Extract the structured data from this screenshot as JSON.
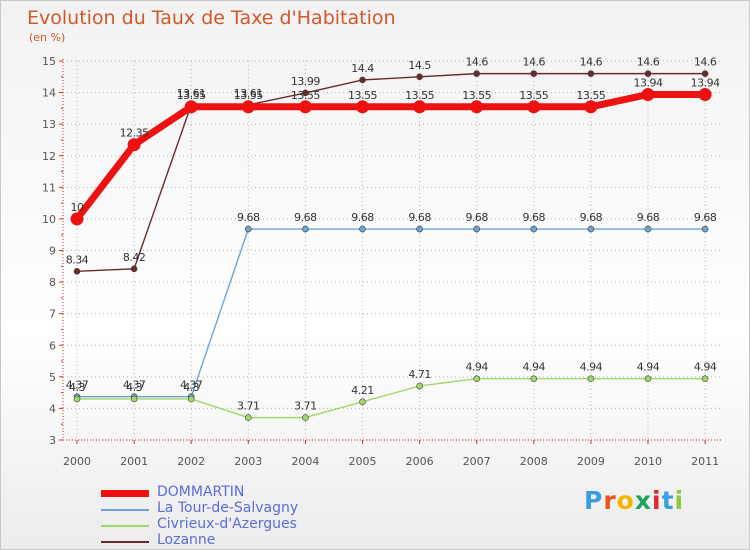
{
  "title": "Evolution du Taux de Taxe d'Habitation",
  "subtitle": "(en %)",
  "logo": {
    "letters": [
      "P",
      "r",
      "o",
      "x",
      "i",
      "t",
      "i"
    ],
    "colors": [
      "#3a9ee0",
      "#e8541b",
      "#f4b400",
      "#1fa45b",
      "#e3262e",
      "#3a9ee0",
      "#8ec63f"
    ]
  },
  "chart_data": {
    "type": "line",
    "title": "Evolution du Taux de Taxe d'Habitation",
    "ylabel": "(en %)",
    "xlabel": "",
    "x": [
      "2000",
      "2001",
      "2002",
      "2003",
      "2004",
      "2005",
      "2006",
      "2007",
      "2008",
      "2009",
      "2010",
      "2011"
    ],
    "ylim": [
      3,
      15
    ],
    "yticks": [
      "3",
      "4",
      "5",
      "6",
      "7",
      "8",
      "9",
      "10",
      "11",
      "12",
      "13",
      "14",
      "15"
    ],
    "legend_position": "bottom-left",
    "series": [
      {
        "name": "DOMMARTIN",
        "color": "#ee1111",
        "values": [
          10,
          12.35,
          13.55,
          13.55,
          13.55,
          13.55,
          13.55,
          13.55,
          13.55,
          13.55,
          13.94,
          13.94
        ],
        "labels": [
          "10",
          "12.35",
          "13.55",
          "13.55",
          "13.55",
          "13.55",
          "13.55",
          "13.55",
          "13.55",
          "13.55",
          "13.94",
          "13.94"
        ]
      },
      {
        "name": "La Tour-de-Salvagny",
        "color": "#6fa3d6",
        "values": [
          4.37,
          4.37,
          4.37,
          9.68,
          9.68,
          9.68,
          9.68,
          9.68,
          9.68,
          9.68,
          9.68,
          9.68
        ],
        "labels": [
          "4.37",
          "4.37",
          "4.37",
          "9.68",
          "9.68",
          "9.68",
          "9.68",
          "9.68",
          "9.68",
          "9.68",
          "9.68",
          "9.68"
        ]
      },
      {
        "name": "Civrieux-d'Azergues",
        "color": "#9fd86a",
        "values": [
          4.3,
          4.3,
          4.3,
          3.71,
          3.71,
          4.21,
          4.71,
          4.94,
          4.94,
          4.94,
          4.94,
          4.94
        ],
        "labels": [
          "4.3",
          "4.3",
          "4.3",
          "3.71",
          "3.71",
          "4.21",
          "4.71",
          "4.94",
          "4.94",
          "4.94",
          "4.94",
          "4.94"
        ]
      },
      {
        "name": "Lozanne",
        "color": "#6b2a2a",
        "values": [
          8.34,
          8.42,
          13.61,
          13.61,
          13.99,
          14.4,
          14.5,
          14.6,
          14.6,
          14.6,
          14.6,
          14.6
        ],
        "labels": [
          "8.34",
          "8.42",
          "13.61",
          "13.61",
          "13.99",
          "14.4",
          "14.5",
          "14.6",
          "14.6",
          "14.6",
          "14.6",
          "14.6"
        ]
      }
    ]
  }
}
